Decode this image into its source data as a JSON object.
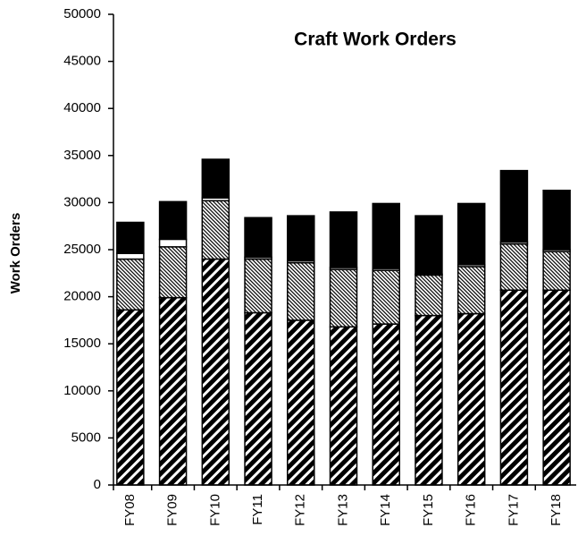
{
  "chart_data": {
    "type": "stacked-bar",
    "title": "Craft Work Orders",
    "y_label": "Work Orders",
    "categories": [
      "FY08",
      "FY09",
      "FY10",
      "FY11",
      "FY12",
      "FY13",
      "FY14",
      "FY15",
      "FY16",
      "FY17",
      "FY18"
    ],
    "series": [
      {
        "color": "#000000",
        "pattern": "wide-diagonal",
        "values": [
          18600,
          19900,
          24000,
          18300,
          17500,
          16800,
          17100,
          18000,
          18200,
          20700,
          20700
        ]
      },
      {
        "color": "#000000",
        "pattern": "fine-hatch",
        "values": [
          5400,
          5400,
          6200,
          5700,
          6100,
          6100,
          5700,
          4300,
          5000,
          4900,
          4100
        ]
      },
      {
        "color": "#ffffff",
        "pattern": "none",
        "values": [
          600,
          800,
          300,
          200,
          200,
          200,
          200,
          100,
          200,
          200,
          200
        ]
      },
      {
        "color": "#000000",
        "pattern": "none",
        "values": [
          3300,
          4000,
          4100,
          4200,
          4800,
          5900,
          6900,
          6200,
          6500,
          7600,
          6300
        ]
      }
    ],
    "ylim": [
      0,
      50000
    ],
    "yticks": [
      0,
      5000,
      10000,
      15000,
      20000,
      25000,
      30000,
      35000,
      40000,
      45000,
      50000
    ]
  }
}
